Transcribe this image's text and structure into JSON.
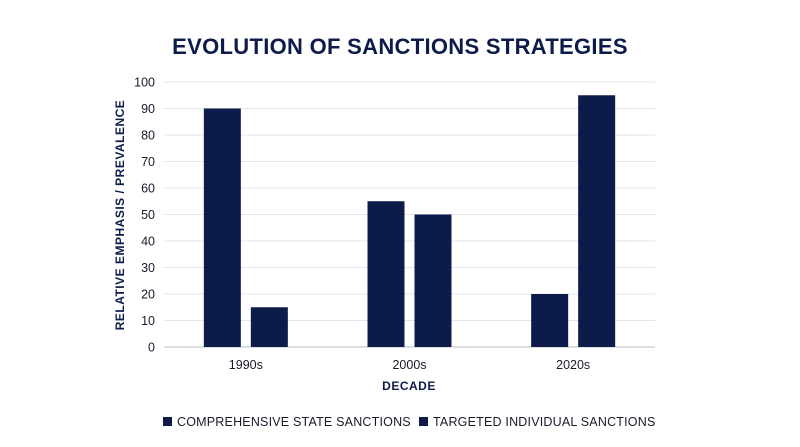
{
  "chart_data": {
    "type": "bar",
    "title": "EVOLUTION OF SANCTIONS STRATEGIES",
    "xlabel": "DECADE",
    "ylabel": "RELATIVE EMPHASIS / PREVALENCE",
    "categories": [
      "1990s",
      "2000s",
      "2020s"
    ],
    "series": [
      {
        "name": "COMPREHENSIVE STATE SANCTIONS",
        "values": [
          90,
          55,
          20
        ],
        "color": "#0d1b4a"
      },
      {
        "name": "TARGETED INDIVIDUAL SANCTIONS",
        "values": [
          15,
          50,
          95
        ],
        "color": "#0d1b4a"
      }
    ],
    "ylim": [
      0,
      100
    ],
    "yticks": [
      0,
      10,
      20,
      30,
      40,
      50,
      60,
      70,
      80,
      90,
      100
    ],
    "grid": true,
    "legend_position": "bottom"
  }
}
